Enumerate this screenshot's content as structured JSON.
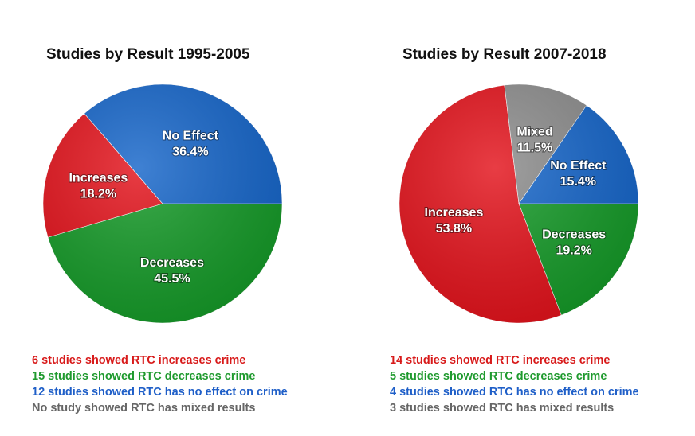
{
  "chart_data": [
    {
      "type": "pie",
      "title": "Studies by Result 1995-2005",
      "slices": [
        {
          "name": "Decreases",
          "value": 45.5,
          "label": "45.5%",
          "color": "#159a28"
        },
        {
          "name": "Increases",
          "value": 18.2,
          "label": "18.2%",
          "color": "#e3121b"
        },
        {
          "name": "No Effect",
          "value": 36.4,
          "label": "36.4%",
          "color": "#1565c9"
        }
      ],
      "notes": [
        {
          "text": "6 studies showed RTC increases crime",
          "color": "#d81a1a"
        },
        {
          "text": "15 studies showed RTC decreases crime",
          "color": "#1f9a2e"
        },
        {
          "text": "12 studies showed RTC has no effect on crime",
          "color": "#1f5fc8"
        },
        {
          "text": "No study showed RTC has mixed results",
          "color": "#666666"
        }
      ]
    },
    {
      "type": "pie",
      "title": "Studies by Result 2007-2018",
      "slices": [
        {
          "name": "Decreases",
          "value": 19.2,
          "label": "19.2%",
          "color": "#159a28"
        },
        {
          "name": "Increases",
          "value": 53.8,
          "label": "53.8%",
          "color": "#e3121b"
        },
        {
          "name": "Mixed",
          "value": 11.5,
          "label": "11.5%",
          "color": "#8c8c8c"
        },
        {
          "name": "No Effect",
          "value": 15.4,
          "label": "15.4%",
          "color": "#1565c9"
        }
      ],
      "notes": [
        {
          "text": "14 studies showed RTC increases crime",
          "color": "#d81a1a"
        },
        {
          "text": "5 studies showed RTC decreases crime",
          "color": "#1f9a2e"
        },
        {
          "text": "4 studies showed RTC has no effect on crime",
          "color": "#1f5fc8"
        },
        {
          "text": "3 studies showed RTC has mixed results",
          "color": "#666666"
        }
      ]
    }
  ]
}
